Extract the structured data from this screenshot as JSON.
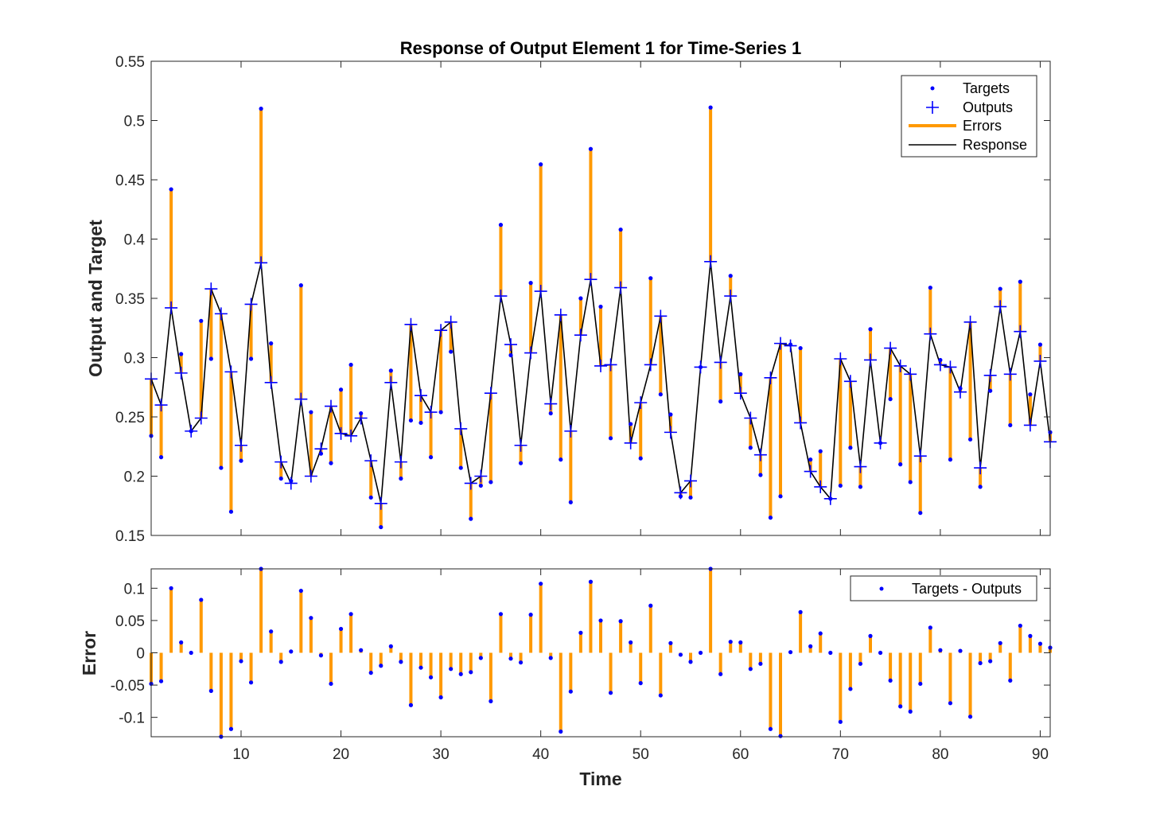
{
  "chart_data": [
    {
      "type": "line",
      "title": "Response of Output Element 1 for Time-Series 1",
      "xlabel": "",
      "ylabel": "Output and Target",
      "xlim": [
        1,
        91
      ],
      "ylim": [
        0.15,
        0.55
      ],
      "x_ticks": [
        10,
        20,
        30,
        40,
        50,
        60,
        70,
        80,
        90
      ],
      "y_ticks": [
        0.15,
        0.2,
        0.25,
        0.3,
        0.35,
        0.4,
        0.45,
        0.5,
        0.55
      ],
      "y_tick_labels": [
        "0.15",
        "0.2",
        "0.25",
        "0.3",
        "0.35",
        "0.4",
        "0.45",
        "0.5",
        "0.55"
      ],
      "grid": false,
      "legend_position": "top-right",
      "legend": [
        "Targets",
        "Outputs",
        "Errors",
        "Response"
      ],
      "colors": {
        "targets": "#0000ff",
        "outputs": "#0000ff",
        "errors": "#ff9900",
        "response": "#000000"
      },
      "x": [
        1,
        2,
        3,
        4,
        5,
        6,
        7,
        8,
        9,
        10,
        11,
        12,
        13,
        14,
        15,
        16,
        17,
        18,
        19,
        20,
        21,
        22,
        23,
        24,
        25,
        26,
        27,
        28,
        29,
        30,
        31,
        32,
        33,
        34,
        35,
        36,
        37,
        38,
        39,
        40,
        41,
        42,
        43,
        44,
        45,
        46,
        47,
        48,
        49,
        50,
        51,
        52,
        53,
        54,
        55,
        56,
        57,
        58,
        59,
        60,
        61,
        62,
        63,
        64,
        65,
        66,
        67,
        68,
        69,
        70,
        71,
        72,
        73,
        74,
        75,
        76,
        77,
        78,
        79,
        80,
        81,
        82,
        83,
        84,
        85,
        86,
        87,
        88,
        89,
        90,
        91
      ],
      "series": [
        {
          "name": "Targets",
          "values": [
            0.234,
            0.216,
            0.442,
            0.303,
            0.238,
            0.331,
            0.299,
            0.207,
            0.17,
            0.213,
            0.299,
            0.51,
            0.312,
            0.198,
            0.196,
            0.361,
            0.254,
            0.219,
            0.211,
            0.273,
            0.294,
            0.253,
            0.182,
            0.157,
            0.289,
            0.198,
            0.247,
            0.245,
            0.216,
            0.254,
            0.305,
            0.207,
            0.164,
            0.192,
            0.195,
            0.412,
            0.302,
            0.211,
            0.363,
            0.463,
            0.253,
            0.214,
            0.178,
            0.35,
            0.476,
            0.343,
            0.232,
            0.408,
            0.244,
            0.215,
            0.367,
            0.269,
            0.252,
            0.183,
            0.182,
            0.292,
            0.511,
            0.263,
            0.369,
            0.286,
            0.224,
            0.201,
            0.165,
            0.183,
            0.311,
            0.308,
            0.214,
            0.221,
            0.181,
            0.192,
            0.224,
            0.191,
            0.324,
            0.228,
            0.265,
            0.21,
            0.195,
            0.169,
            0.359,
            0.298,
            0.214,
            0.274,
            0.231,
            0.191,
            0.272,
            0.358,
            0.243,
            0.364,
            0.269,
            0.311,
            0.237
          ]
        },
        {
          "name": "Outputs",
          "values": [
            0.282,
            0.26,
            0.342,
            0.287,
            0.238,
            0.249,
            0.358,
            0.337,
            0.288,
            0.226,
            0.345,
            0.38,
            0.279,
            0.212,
            0.194,
            0.265,
            0.2,
            0.223,
            0.259,
            0.236,
            0.234,
            0.249,
            0.213,
            0.177,
            0.279,
            0.212,
            0.328,
            0.268,
            0.254,
            0.323,
            0.33,
            0.24,
            0.194,
            0.2,
            0.27,
            0.352,
            0.311,
            0.226,
            0.304,
            0.356,
            0.261,
            0.336,
            0.238,
            0.319,
            0.366,
            0.293,
            0.294,
            0.359,
            0.228,
            0.262,
            0.294,
            0.335,
            0.237,
            0.186,
            0.196,
            0.292,
            0.381,
            0.296,
            0.352,
            0.27,
            0.249,
            0.218,
            0.283,
            0.312,
            0.31,
            0.245,
            0.204,
            0.191,
            0.181,
            0.299,
            0.28,
            0.208,
            0.298,
            0.228,
            0.308,
            0.293,
            0.286,
            0.217,
            0.32,
            0.294,
            0.292,
            0.271,
            0.33,
            0.207,
            0.285,
            0.343,
            0.286,
            0.322,
            0.243,
            0.297,
            0.229
          ]
        }
      ]
    },
    {
      "type": "bar",
      "title": "",
      "xlabel": "Time",
      "ylabel": "Error",
      "xlim": [
        1,
        91
      ],
      "ylim": [
        -0.13,
        0.13
      ],
      "x_ticks": [
        10,
        20,
        30,
        40,
        50,
        60,
        70,
        80,
        90
      ],
      "x_tick_labels": [
        "10",
        "20",
        "30",
        "40",
        "50",
        "60",
        "70",
        "80",
        "90"
      ],
      "y_ticks": [
        -0.1,
        -0.05,
        0,
        0.05,
        0.1
      ],
      "y_tick_labels": [
        "-0.1",
        "-0.05",
        "0",
        "0.05",
        "0.1"
      ],
      "grid": false,
      "legend_position": "top-right",
      "legend": [
        "Targets - Outputs"
      ],
      "colors": {
        "points": "#0000ff",
        "stems": "#ff9900"
      },
      "x": [
        1,
        2,
        3,
        4,
        5,
        6,
        7,
        8,
        9,
        10,
        11,
        12,
        13,
        14,
        15,
        16,
        17,
        18,
        19,
        20,
        21,
        22,
        23,
        24,
        25,
        26,
        27,
        28,
        29,
        30,
        31,
        32,
        33,
        34,
        35,
        36,
        37,
        38,
        39,
        40,
        41,
        42,
        43,
        44,
        45,
        46,
        47,
        48,
        49,
        50,
        51,
        52,
        53,
        54,
        55,
        56,
        57,
        58,
        59,
        60,
        61,
        62,
        63,
        64,
        65,
        66,
        67,
        68,
        69,
        70,
        71,
        72,
        73,
        74,
        75,
        76,
        77,
        78,
        79,
        80,
        81,
        82,
        83,
        84,
        85,
        86,
        87,
        88,
        89,
        90,
        91
      ],
      "series": [
        {
          "name": "Targets - Outputs",
          "values": [
            -0.048,
            -0.044,
            0.1,
            0.016,
            0.0,
            0.082,
            -0.059,
            -0.13,
            -0.118,
            -0.013,
            -0.046,
            0.13,
            0.033,
            -0.014,
            0.002,
            0.096,
            0.054,
            -0.004,
            -0.048,
            0.037,
            0.06,
            0.004,
            -0.031,
            -0.02,
            0.01,
            -0.014,
            -0.081,
            -0.023,
            -0.038,
            -0.069,
            -0.025,
            -0.033,
            -0.03,
            -0.008,
            -0.075,
            0.06,
            -0.009,
            -0.015,
            0.059,
            0.107,
            -0.008,
            -0.122,
            -0.06,
            0.031,
            0.11,
            0.05,
            -0.062,
            0.049,
            0.016,
            -0.047,
            0.073,
            -0.066,
            0.015,
            -0.003,
            -0.014,
            0.0,
            0.13,
            -0.033,
            0.017,
            0.016,
            -0.025,
            -0.017,
            -0.118,
            -0.129,
            0.001,
            0.063,
            0.01,
            0.03,
            0.0,
            -0.107,
            -0.056,
            -0.017,
            0.026,
            0.0,
            -0.043,
            -0.083,
            -0.091,
            -0.048,
            0.039,
            0.004,
            -0.078,
            0.003,
            -0.099,
            -0.016,
            -0.013,
            0.015,
            -0.043,
            0.042,
            0.026,
            0.014,
            0.008
          ]
        }
      ]
    }
  ]
}
